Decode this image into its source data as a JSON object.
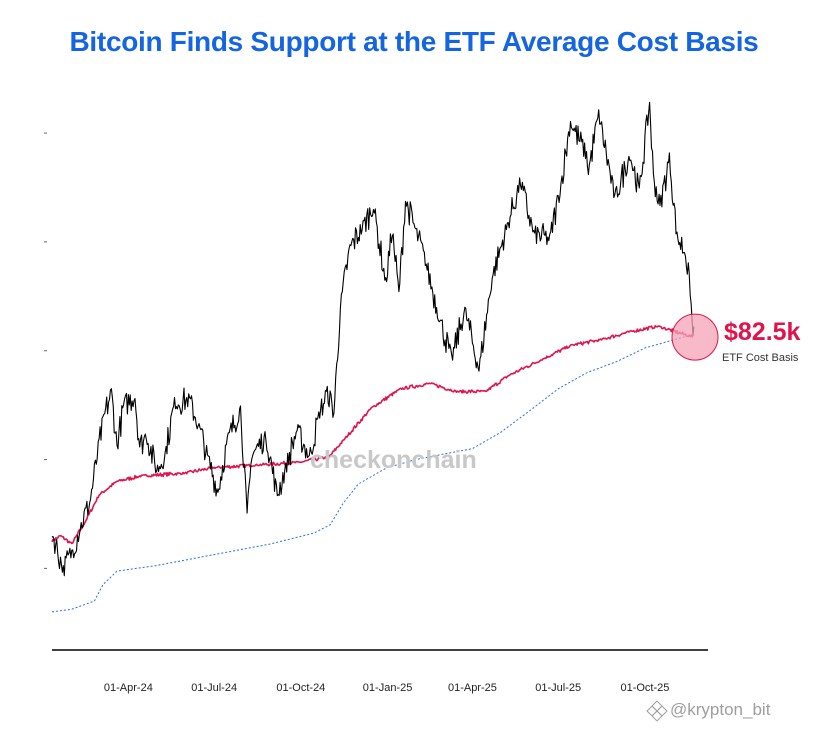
{
  "chart_data": {
    "type": "line",
    "title": "Bitcoin Finds Support at the ETF Average Cost Basis",
    "x_ticks": [
      "01-Apr-24",
      "01-Jul-24",
      "01-Oct-24",
      "01-Jan-25",
      "01-Apr-25",
      "01-Jul-25",
      "01-Oct-25"
    ],
    "x_range": [
      "2024-01-11",
      "2025-11-21"
    ],
    "grid": false,
    "legend": "none",
    "series": [
      {
        "color": "#000000",
        "style": "solid",
        "points": [
          [
            "2024-01-11",
            46.5
          ],
          [
            "2024-01-23",
            39.8
          ],
          [
            "2024-02-01",
            43.0
          ],
          [
            "2024-02-10",
            47.5
          ],
          [
            "2024-02-20",
            52.0
          ],
          [
            "2024-02-28",
            60.5
          ],
          [
            "2024-03-05",
            67.0
          ],
          [
            "2024-03-14",
            72.5
          ],
          [
            "2024-03-20",
            62.5
          ],
          [
            "2024-03-27",
            70.0
          ],
          [
            "2024-04-08",
            71.5
          ],
          [
            "2024-04-13",
            62.5
          ],
          [
            "2024-04-20",
            64.5
          ],
          [
            "2024-05-01",
            58.0
          ],
          [
            "2024-05-10",
            61.0
          ],
          [
            "2024-05-20",
            70.5
          ],
          [
            "2024-06-05",
            71.0
          ],
          [
            "2024-06-15",
            66.0
          ],
          [
            "2024-06-24",
            60.5
          ],
          [
            "2024-07-05",
            54.0
          ],
          [
            "2024-07-15",
            63.5
          ],
          [
            "2024-07-29",
            69.5
          ],
          [
            "2024-08-05",
            49.5
          ],
          [
            "2024-08-10",
            61.0
          ],
          [
            "2024-08-25",
            64.0
          ],
          [
            "2024-09-06",
            53.5
          ],
          [
            "2024-09-15",
            58.5
          ],
          [
            "2024-09-27",
            65.5
          ],
          [
            "2024-10-10",
            60.5
          ],
          [
            "2024-10-21",
            68.5
          ],
          [
            "2024-10-29",
            72.5
          ],
          [
            "2024-11-05",
            68.5
          ],
          [
            "2024-11-12",
            88.0
          ],
          [
            "2024-11-22",
            99.0
          ],
          [
            "2024-12-05",
            102.5
          ],
          [
            "2024-12-17",
            106.5
          ],
          [
            "2024-12-30",
            92.5
          ],
          [
            "2025-01-06",
            102.0
          ],
          [
            "2025-01-13",
            90.5
          ],
          [
            "2025-01-20",
            107.5
          ],
          [
            "2025-01-31",
            102.0
          ],
          [
            "2025-02-10",
            96.5
          ],
          [
            "2025-02-25",
            86.0
          ],
          [
            "2025-03-10",
            78.5
          ],
          [
            "2025-03-24",
            87.5
          ],
          [
            "2025-04-08",
            76.5
          ],
          [
            "2025-04-22",
            93.5
          ],
          [
            "2025-05-08",
            103.0
          ],
          [
            "2025-05-22",
            111.0
          ],
          [
            "2025-06-05",
            101.5
          ],
          [
            "2025-06-22",
            100.5
          ],
          [
            "2025-07-03",
            109.5
          ],
          [
            "2025-07-14",
            122.0
          ],
          [
            "2025-07-31",
            116.0
          ],
          [
            "2025-08-02",
            113.0
          ],
          [
            "2025-08-13",
            123.5
          ],
          [
            "2025-08-30",
            108.0
          ],
          [
            "2025-09-15",
            116.0
          ],
          [
            "2025-09-25",
            109.5
          ],
          [
            "2025-10-06",
            125.5
          ],
          [
            "2025-10-10",
            112.0
          ],
          [
            "2025-10-17",
            106.5
          ],
          [
            "2025-10-27",
            115.5
          ],
          [
            "2025-11-04",
            101.0
          ],
          [
            "2025-11-13",
            98.0
          ],
          [
            "2025-11-18",
            91.0
          ],
          [
            "2025-11-21",
            82.5
          ],
          [
            "2025-11-22",
            84.5
          ]
        ]
      },
      {
        "name": "ETF Cost Basis",
        "color": "#e0144c",
        "style": "solid",
        "points": [
          [
            "2024-01-11",
            45.0
          ],
          [
            "2024-01-20",
            46.0
          ],
          [
            "2024-02-01",
            44.5
          ],
          [
            "2024-02-15",
            48.5
          ],
          [
            "2024-03-01",
            53.5
          ],
          [
            "2024-03-20",
            56.0
          ],
          [
            "2024-04-15",
            57.0
          ],
          [
            "2024-05-31",
            57.5
          ],
          [
            "2024-06-30",
            58.5
          ],
          [
            "2024-08-15",
            59.0
          ],
          [
            "2024-09-30",
            59.5
          ],
          [
            "2024-10-31",
            60.5
          ],
          [
            "2024-11-15",
            63.5
          ],
          [
            "2024-12-15",
            69.5
          ],
          [
            "2025-01-15",
            73.0
          ],
          [
            "2025-02-15",
            74.0
          ],
          [
            "2025-03-15",
            72.5
          ],
          [
            "2025-04-15",
            72.5
          ],
          [
            "2025-05-10",
            75.5
          ],
          [
            "2025-06-15",
            78.5
          ],
          [
            "2025-07-15",
            81.0
          ],
          [
            "2025-08-15",
            82.0
          ],
          [
            "2025-09-15",
            83.5
          ],
          [
            "2025-10-15",
            84.5
          ],
          [
            "2025-11-21",
            82.5
          ]
        ]
      },
      {
        "color": "#2a70d8",
        "style": "dotted",
        "points": [
          [
            "2024-01-11",
            32.0
          ],
          [
            "2024-02-01",
            32.5
          ],
          [
            "2024-02-25",
            34.0
          ],
          [
            "2024-03-05",
            37.0
          ],
          [
            "2024-03-20",
            39.5
          ],
          [
            "2024-04-30",
            40.5
          ],
          [
            "2024-06-30",
            42.5
          ],
          [
            "2024-08-30",
            44.5
          ],
          [
            "2024-10-15",
            46.5
          ],
          [
            "2024-11-01",
            48.0
          ],
          [
            "2024-11-15",
            52.0
          ],
          [
            "2024-12-01",
            55.5
          ],
          [
            "2024-12-31",
            58.5
          ],
          [
            "2025-01-31",
            60.0
          ],
          [
            "2025-03-01",
            61.0
          ],
          [
            "2025-04-01",
            62.0
          ],
          [
            "2025-05-01",
            65.0
          ],
          [
            "2025-06-01",
            69.0
          ],
          [
            "2025-07-01",
            73.0
          ],
          [
            "2025-08-01",
            76.0
          ],
          [
            "2025-09-01",
            78.0
          ],
          [
            "2025-10-01",
            80.5
          ],
          [
            "2025-11-21",
            83.0
          ]
        ]
      }
    ],
    "annotation": {
      "value_label": "$82.5k",
      "text": "ETF Cost Basis",
      "date": "2025-11-21",
      "value": 82.5
    }
  },
  "watermark": "checkonchain",
  "credit": "@krypton_bit"
}
